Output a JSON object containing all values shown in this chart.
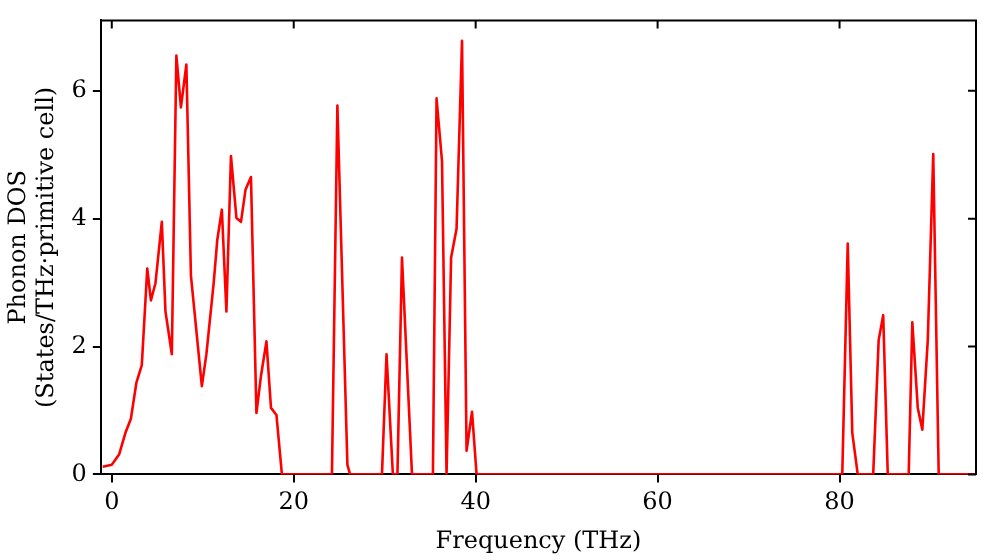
{
  "chart_data": {
    "type": "line",
    "xlabel": "Frequency (THz)",
    "ylabel": "Phonon DOS\n(States/THz·primitive cell)",
    "x": [
      -1,
      0,
      0.8,
      1.5,
      2.1,
      2.7,
      3.3,
      3.9,
      4.3,
      4.8,
      5.5,
      5.9,
      6.6,
      7.1,
      7.6,
      8.2,
      8.7,
      9.9,
      10.4,
      11.2,
      11.6,
      12.1,
      12.6,
      13.1,
      13.7,
      14.2,
      14.7,
      15.3,
      15.9,
      16.4,
      17.0,
      17.5,
      18.1,
      18.7,
      24.2,
      24.8,
      25.9,
      26.2,
      29.7,
      30.2,
      30.9,
      31.4,
      31.9,
      33.0,
      35.3,
      35.7,
      36.3,
      36.8,
      37.3,
      37.9,
      38.5,
      39.0,
      39.6,
      40.1,
      80.3,
      80.9,
      81.4,
      82.0,
      83.7,
      84.3,
      84.8,
      85.3,
      87.6,
      88.0,
      88.6,
      89.1,
      89.7,
      90.3,
      90.9,
      94.9
    ],
    "series": [
      {
        "color": "#ff0000",
        "values": [
          0.12,
          0.15,
          0.31,
          0.65,
          0.87,
          1.43,
          1.71,
          3.22,
          2.72,
          2.99,
          3.95,
          2.55,
          1.88,
          6.55,
          5.74,
          6.41,
          3.11,
          1.38,
          1.88,
          2.99,
          3.67,
          4.14,
          2.55,
          4.98,
          4.01,
          3.95,
          4.45,
          4.65,
          0.96,
          1.54,
          2.08,
          1.04,
          0.93,
          0,
          0,
          5.77,
          0.15,
          0,
          0,
          1.88,
          0,
          0,
          3.39,
          0,
          0,
          5.88,
          4.9,
          0,
          3.39,
          3.84,
          6.78,
          0.37,
          0.98,
          0,
          0,
          3.61,
          0.65,
          0,
          0,
          2.1,
          2.49,
          0,
          0,
          2.38,
          1.04,
          0.7,
          2.1,
          5.01,
          0,
          0
        ]
      }
    ],
    "xlim": [
      -1.2,
      95
    ],
    "ylim": [
      0,
      7.1
    ],
    "xticks": [
      0,
      20,
      40,
      60,
      80
    ],
    "yticks": [
      0,
      2,
      4,
      6
    ],
    "grid": false,
    "legend": false,
    "marker": "none",
    "line_style": "solid"
  }
}
